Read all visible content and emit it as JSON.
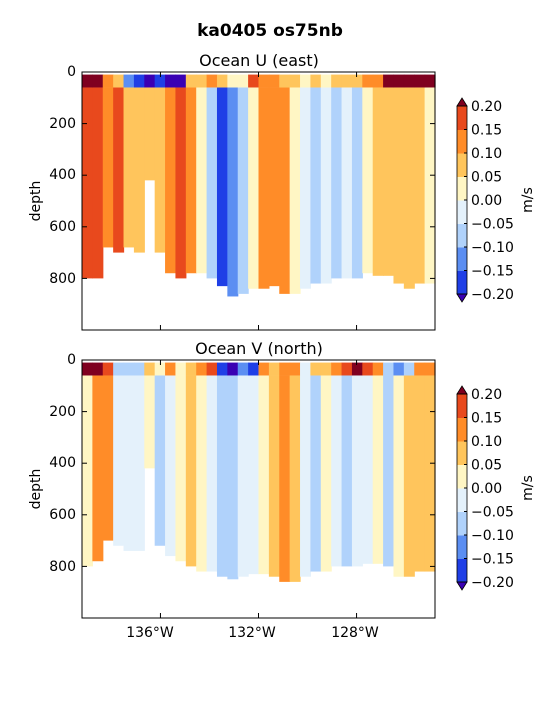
{
  "figure_title": "ka0405 os75nb",
  "colors": {
    "levels": [
      "#3a00b3",
      "#1f3fe6",
      "#5b8ef2",
      "#b0d2fb",
      "#e4f1fb",
      "#fff6c4",
      "#ffc55c",
      "#ff8c28",
      "#e8491d",
      "#c8140f",
      "#7f0020"
    ],
    "nodata": "#ffffff"
  },
  "chart_data": [
    {
      "type": "heatmap",
      "title": "Ocean U (east)",
      "ylabel": "depth",
      "xlabel": "",
      "x_ticks": [
        "136°W",
        "132°W",
        "128°W"
      ],
      "y_ticks": [
        "0",
        "200",
        "400",
        "600",
        "800"
      ],
      "ylim": [
        1000,
        0
      ],
      "colorbar": {
        "label": "m/s",
        "ticks": [
          "0.20",
          "0.15",
          "0.10",
          "0.05",
          "0.00",
          "−0.05",
          "−0.10",
          "−0.15",
          "−0.20"
        ],
        "range": [
          -0.2,
          0.2
        ],
        "extend": "both"
      },
      "profiles": [
        {
          "x": -138.5,
          "bottom": 800,
          "surface": 0.24,
          "value": 0.16
        },
        {
          "x": -138.0,
          "bottom": 800,
          "surface": 0.2,
          "value": 0.17
        },
        {
          "x": -137.6,
          "bottom": 680,
          "surface": 0.12,
          "value": 0.12
        },
        {
          "x": -137.2,
          "bottom": 700,
          "surface": 0.08,
          "value": 0.16
        },
        {
          "x": -136.8,
          "bottom": 680,
          "surface": -0.12,
          "value": 0.08
        },
        {
          "x": -136.4,
          "bottom": 700,
          "surface": -0.18,
          "value": 0.09
        },
        {
          "x": -136.0,
          "bottom": 420,
          "surface": -0.2,
          "value": 0.06
        },
        {
          "x": -135.6,
          "bottom": 700,
          "surface": -0.18,
          "value": 0.06
        },
        {
          "x": -135.2,
          "bottom": 780,
          "surface": -0.22,
          "value": 0.14
        },
        {
          "x": -134.8,
          "bottom": 800,
          "surface": -0.2,
          "value": 0.16
        },
        {
          "x": -134.4,
          "bottom": 780,
          "surface": 0.05,
          "value": 0.14
        },
        {
          "x": -134.0,
          "bottom": 780,
          "surface": 0.06,
          "value": 0.0
        },
        {
          "x": -133.6,
          "bottom": 800,
          "surface": 0.1,
          "value": -0.06
        },
        {
          "x": -133.2,
          "bottom": 830,
          "surface": 0.06,
          "value": -0.16
        },
        {
          "x": -132.8,
          "bottom": 870,
          "surface": 0.04,
          "value": -0.14
        },
        {
          "x": -132.4,
          "bottom": 860,
          "surface": 0.02,
          "value": -0.09
        },
        {
          "x": -132.0,
          "bottom": 840,
          "surface": 0.18,
          "value": 0.02
        },
        {
          "x": -131.6,
          "bottom": 840,
          "surface": 0.12,
          "value": 0.12
        },
        {
          "x": -131.2,
          "bottom": 830,
          "surface": 0.1,
          "value": 0.15
        },
        {
          "x": -130.8,
          "bottom": 860,
          "surface": 0.08,
          "value": 0.1
        },
        {
          "x": -130.4,
          "bottom": 860,
          "surface": 0.06,
          "value": 0.04
        },
        {
          "x": -130.0,
          "bottom": 840,
          "surface": 0.04,
          "value": -0.02
        },
        {
          "x": -129.6,
          "bottom": 820,
          "surface": 0.06,
          "value": -0.06
        },
        {
          "x": -129.2,
          "bottom": 820,
          "surface": 0.04,
          "value": -0.04
        },
        {
          "x": -128.8,
          "bottom": 800,
          "surface": 0.08,
          "value": -0.07
        },
        {
          "x": -128.4,
          "bottom": 800,
          "surface": 0.06,
          "value": -0.02
        },
        {
          "x": -128.0,
          "bottom": 800,
          "surface": 0.08,
          "value": -0.06
        },
        {
          "x": -127.6,
          "bottom": 780,
          "surface": 0.1,
          "value": 0.04
        },
        {
          "x": -127.2,
          "bottom": 790,
          "surface": 0.12,
          "value": 0.06
        },
        {
          "x": -126.8,
          "bottom": 790,
          "surface": 0.2,
          "value": 0.05
        },
        {
          "x": -126.4,
          "bottom": 820,
          "surface": 0.24,
          "value": 0.07
        },
        {
          "x": -126.0,
          "bottom": 840,
          "surface": 0.24,
          "value": 0.05
        },
        {
          "x": -125.6,
          "bottom": 820,
          "surface": 0.24,
          "value": 0.06
        },
        {
          "x": -125.2,
          "bottom": 820,
          "surface": 0.22,
          "value": 0.04
        }
      ]
    },
    {
      "type": "heatmap",
      "title": "Ocean V (north)",
      "ylabel": "depth",
      "xlabel": "",
      "x_ticks": [
        "136°W",
        "132°W",
        "128°W"
      ],
      "y_ticks": [
        "0",
        "200",
        "400",
        "600",
        "800"
      ],
      "ylim": [
        1000,
        0
      ],
      "colorbar": {
        "label": "m/s",
        "ticks": [
          "0.20",
          "0.15",
          "0.10",
          "0.05",
          "0.00",
          "−0.05",
          "−0.10",
          "−0.15",
          "−0.20"
        ],
        "range": [
          -0.2,
          0.2
        ],
        "extend": "both"
      },
      "profiles": [
        {
          "x": -138.5,
          "bottom": 800,
          "surface": 0.24,
          "value": 0.04
        },
        {
          "x": -138.0,
          "bottom": 780,
          "surface": 0.22,
          "value": 0.14
        },
        {
          "x": -137.6,
          "bottom": 700,
          "surface": 0.18,
          "value": 0.1
        },
        {
          "x": -137.2,
          "bottom": 720,
          "surface": -0.08,
          "value": -0.02
        },
        {
          "x": -136.8,
          "bottom": 740,
          "surface": -0.1,
          "value": -0.04
        },
        {
          "x": -136.4,
          "bottom": 740,
          "surface": -0.06,
          "value": -0.03
        },
        {
          "x": -136.0,
          "bottom": 420,
          "surface": 0.06,
          "value": 0.0
        },
        {
          "x": -135.6,
          "bottom": 720,
          "surface": 0.04,
          "value": -0.06
        },
        {
          "x": -135.2,
          "bottom": 760,
          "surface": 0.1,
          "value": -0.03
        },
        {
          "x": -134.8,
          "bottom": 780,
          "surface": 0.02,
          "value": 0.01
        },
        {
          "x": -134.4,
          "bottom": 800,
          "surface": 0.08,
          "value": 0.06
        },
        {
          "x": -134.0,
          "bottom": 820,
          "surface": 0.1,
          "value": 0.02
        },
        {
          "x": -133.6,
          "bottom": 820,
          "surface": 0.18,
          "value": -0.02
        },
        {
          "x": -133.2,
          "bottom": 840,
          "surface": -0.16,
          "value": -0.08
        },
        {
          "x": -132.8,
          "bottom": 850,
          "surface": -0.2,
          "value": -0.07
        },
        {
          "x": -132.4,
          "bottom": 840,
          "surface": -0.12,
          "value": -0.04
        },
        {
          "x": -132.0,
          "bottom": 830,
          "surface": -0.18,
          "value": -0.03
        },
        {
          "x": -131.6,
          "bottom": 830,
          "surface": 0.1,
          "value": 0.0
        },
        {
          "x": -131.2,
          "bottom": 840,
          "surface": 0.06,
          "value": 0.05
        },
        {
          "x": -130.8,
          "bottom": 860,
          "surface": 0.12,
          "value": 0.11
        },
        {
          "x": -130.4,
          "bottom": 860,
          "surface": 0.1,
          "value": 0.08
        },
        {
          "x": -130.0,
          "bottom": 840,
          "surface": -0.04,
          "value": -0.05
        },
        {
          "x": -129.6,
          "bottom": 820,
          "surface": 0.06,
          "value": -0.07
        },
        {
          "x": -129.2,
          "bottom": 820,
          "surface": 0.08,
          "value": 0.01
        },
        {
          "x": -128.8,
          "bottom": 800,
          "surface": 0.12,
          "value": -0.03
        },
        {
          "x": -128.4,
          "bottom": 800,
          "surface": 0.16,
          "value": -0.08
        },
        {
          "x": -128.0,
          "bottom": 800,
          "surface": 0.22,
          "value": -0.05
        },
        {
          "x": -127.6,
          "bottom": 790,
          "surface": 0.18,
          "value": -0.02
        },
        {
          "x": -127.2,
          "bottom": 790,
          "surface": 0.14,
          "value": 0.02
        },
        {
          "x": -126.8,
          "bottom": 800,
          "surface": -0.1,
          "value": -0.06
        },
        {
          "x": -126.4,
          "bottom": 840,
          "surface": -0.14,
          "value": 0.03
        },
        {
          "x": -126.0,
          "bottom": 840,
          "surface": -0.08,
          "value": 0.06
        },
        {
          "x": -125.6,
          "bottom": 820,
          "surface": 0.1,
          "value": 0.08
        },
        {
          "x": -125.2,
          "bottom": 820,
          "surface": 0.14,
          "value": 0.05
        }
      ]
    }
  ]
}
